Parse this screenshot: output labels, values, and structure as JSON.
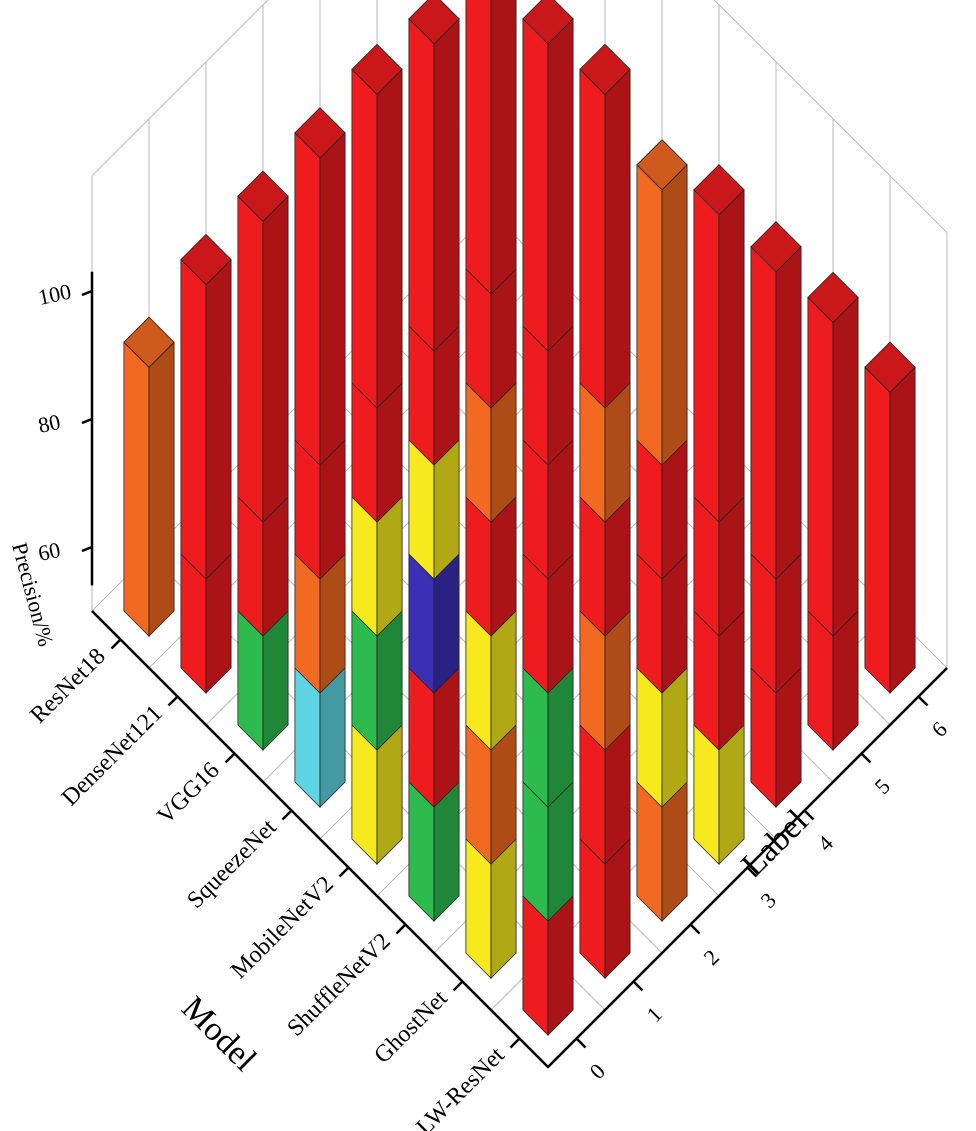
{
  "chart_data": {
    "type": "bar",
    "subtype": "3d-bar",
    "title": "",
    "xlabel": "Label",
    "ylabel": "Model",
    "zlabel": "Precision/%",
    "x_categories": [
      "0",
      "1",
      "2",
      "3",
      "4",
      "5",
      "6"
    ],
    "y_categories": [
      "ResNet18",
      "DenseNet121",
      "VGG16",
      "SqueezeNet",
      "MobileNetV2",
      "ShuffleNetV2",
      "GhostNet",
      "LW-ResNet"
    ],
    "z_ticks": [
      "60",
      "80",
      "100"
    ],
    "zlim": [
      50,
      100
    ],
    "grid": true,
    "colormap": {
      "red": "#ee1c1f",
      "orange": "#f26a22",
      "yellow": "#f6ea1e",
      "green": "#2dbb4e",
      "cyan": "#5fd4e2",
      "blue": "#3a2fb5"
    },
    "values": [
      [
        92,
        96,
        97,
        98,
        99,
        98,
        97
      ],
      [
        95,
        97,
        98,
        99,
        99,
        99,
        98
      ],
      [
        76,
        93,
        87,
        83,
        93,
        98,
        99
      ],
      [
        73,
        76,
        69,
        94,
        99,
        92,
        93
      ],
      [
        85,
        99,
        85,
        97,
        96,
        99,
        98
      ],
      [
        77,
        93,
        79,
        92,
        97,
        97,
        98
      ],
      [
        82,
        76,
        99,
        87,
        94,
        98,
        99
      ],
      [
        98,
        95,
        93,
        82,
        94,
        96,
        97
      ]
    ]
  }
}
